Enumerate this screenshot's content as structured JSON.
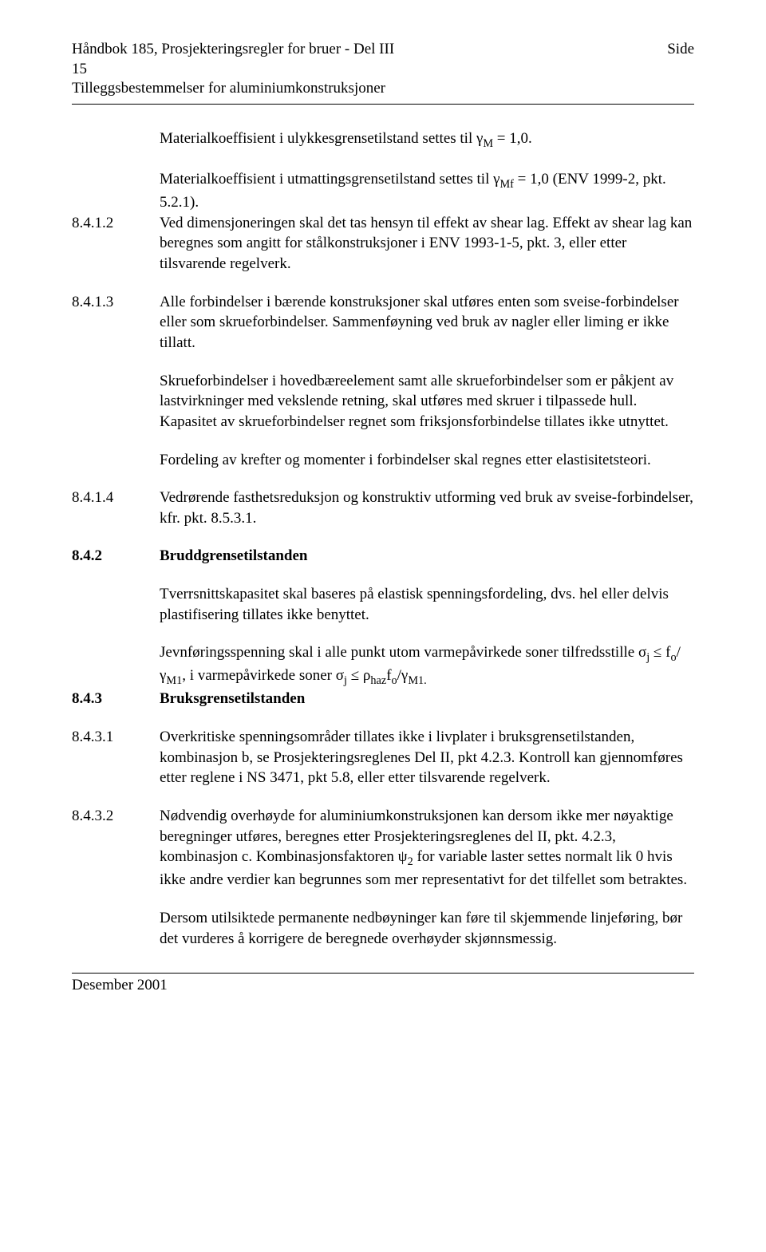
{
  "header": {
    "title_line1_left": "Håndbok 185, Prosjekteringsregler for bruer - Del III",
    "title_line1_right": "Side",
    "title_line2": "15",
    "title_line3": "Tilleggsbestemmelser for aluminiumkonstruksjoner"
  },
  "intro": {
    "p1_a": "Materialkoeffisient i ulykkesgrensetilstand settes til γ",
    "p1_sub": "M",
    "p1_b": " = 1,0.",
    "p2_a": "Materialkoeffisient i utmattingsgrensetilstand settes til γ",
    "p2_sub": "Mf",
    "p2_b": " = 1,0 (ENV 1999-2, pkt. 5.2.1)."
  },
  "s8412": {
    "num": "8.4.1.2",
    "text": "Ved dimensjoneringen skal det tas hensyn til effekt av shear lag. Effekt av shear lag kan beregnes som angitt for stålkonstruksjoner i ENV 1993-1-5, pkt. 3, eller etter tilsvarende regelverk."
  },
  "s8413": {
    "num": "8.4.1.3",
    "p1": "Alle forbindelser i bærende konstruksjoner skal utføres enten som sveise-forbindelser eller som skrueforbindelser. Sammenføyning ved bruk av nagler eller liming er ikke tillatt.",
    "p2": "Skrueforbindelser i hovedbæreelement samt alle skrueforbindelser som er påkjent av lastvirkninger med vekslende retning, skal utføres med skruer i tilpassede hull. Kapasitet av skrueforbindelser regnet som friksjonsforbindelse tillates ikke utnyttet.",
    "p3": "Fordeling av krefter og momenter i forbindelser skal regnes etter elastisitetsteori."
  },
  "s8414": {
    "num": "8.4.1.4",
    "text": "Vedrørende fasthetsreduksjon og konstruktiv utforming ved bruk av sveise-forbindelser, kfr. pkt. 8.5.3.1."
  },
  "s842": {
    "num": "8.4.2",
    "heading": "Bruddgrensetilstanden",
    "p1": "Tverrsnittskapasitet skal baseres på elastisk spenningsfordeling, dvs. hel eller delvis plastifisering tillates ikke benyttet.",
    "p2_a": "Jevnføringsspenning skal i alle punkt utom varmepåvirkede soner tilfredsstille σ",
    "p2_sub1": "j",
    "p2_b": " ≤  f",
    "p2_sub2": "o",
    "p2_c": "/γ",
    "p2_sub3": "M1",
    "p2_d": ", i varmepåvirkede soner σ",
    "p2_sub4": "j",
    "p2_e": " ≤  ρ",
    "p2_sub5": "haz",
    "p2_f": "f",
    "p2_sub6": "o",
    "p2_g": "/γ",
    "p2_sub7": "M1.",
    "p2_end": ""
  },
  "s843": {
    "num": "8.4.3",
    "heading": "Bruksgrensetilstanden"
  },
  "s8431": {
    "num": "8.4.3.1",
    "text": "Overkritiske spenningsområder tillates ikke i livplater i bruksgrensetilstanden, kombinasjon b, se Prosjekteringsreglenes Del II, pkt 4.2.3. Kontroll kan gjennomføres etter reglene i NS 3471, pkt 5.8, eller etter tilsvarende regelverk."
  },
  "s8432": {
    "num": "8.4.3.2",
    "p1_a": "Nødvendig overhøyde for aluminiumkonstruksjonen kan dersom ikke mer nøyaktige beregninger utføres, beregnes etter Prosjekteringsreglenes del II, pkt. 4.2.3, kombinasjon c. Kombinasjonsfaktoren ψ",
    "p1_sub": "2",
    "p1_b": " for variable laster settes normalt lik 0 hvis ikke andre verdier kan begrunnes som mer representativt for det tilfellet som betraktes.",
    "p2": "Dersom utilsiktede permanente nedbøyninger kan føre til skjemmende linjeføring, bør det vurderes å korrigere de beregnede overhøyder skjønnsmessig."
  },
  "footer": {
    "text": "Desember 2001"
  }
}
